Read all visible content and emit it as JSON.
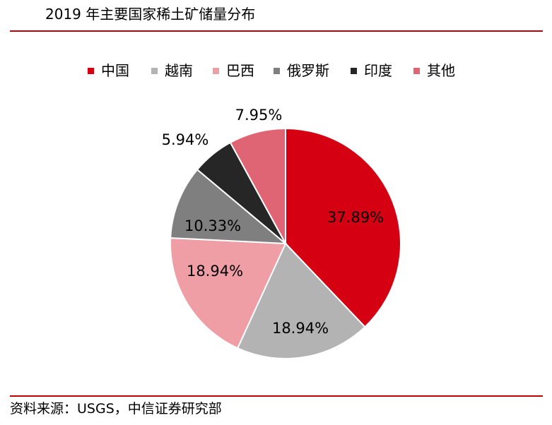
{
  "title": "2019 年主要国家稀土矿储量分布",
  "source": "资料来源：USGS，中信证券研究部",
  "chart_data": {
    "type": "pie",
    "title": "2019 年主要国家稀土矿储量分布",
    "legend_position": "top",
    "start": "top, clockwise",
    "slices": [
      {
        "name": "中国",
        "value": 37.89,
        "label": "37.89%",
        "color": "#d50012"
      },
      {
        "name": "越南",
        "value": 18.94,
        "label": "18.94%",
        "color": "#b3b3b3"
      },
      {
        "name": "巴西",
        "value": 18.94,
        "label": "18.94%",
        "color": "#ef9ea6"
      },
      {
        "name": "俄罗斯",
        "value": 10.33,
        "label": "10.33%",
        "color": "#7f7f7f"
      },
      {
        "name": "印度",
        "value": 5.94,
        "label": "5.94%",
        "color": "#262626"
      },
      {
        "name": "其他",
        "value": 7.95,
        "label": "7.95%",
        "color": "#e06574"
      }
    ]
  }
}
